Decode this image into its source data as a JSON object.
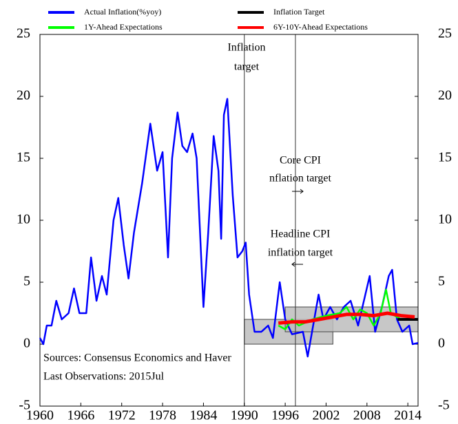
{
  "chart_data": {
    "type": "line",
    "xlim": [
      1960,
      2015.5
    ],
    "xticks": [
      1960,
      1966,
      1972,
      1978,
      1984,
      1990,
      1996,
      2002,
      2008,
      2014
    ],
    "ylim": [
      -5,
      25
    ],
    "yticks": [
      -5,
      0,
      5,
      10,
      15,
      20,
      25
    ],
    "y2lim": [
      -5,
      25
    ],
    "y2ticks": [
      -5,
      0,
      5,
      10,
      15,
      20,
      25
    ],
    "bands": [
      {
        "x": [
          1990,
          2003
        ],
        "y": [
          0,
          2
        ]
      },
      {
        "x": [
          1996,
          2015.5
        ],
        "y": [
          1,
          3
        ]
      }
    ],
    "vlines": [
      1990,
      1997.5
    ],
    "annotations": [
      "Inflation",
      "target",
      "Core CPI",
      "nflation target",
      "Headline CPI",
      "inflation target",
      "Sources: Consensus Economics and Haver",
      "Last Observations: 2015Jul"
    ],
    "series": [
      {
        "name": "Actual Inflation(%yoy)",
        "color": "#0000ff",
        "x": [
          1960,
          1960.5,
          1961,
          1961.7,
          1962.4,
          1963.2,
          1964.2,
          1965,
          1965.8,
          1966.8,
          1967.5,
          1968.3,
          1969.1,
          1969.8,
          1970.8,
          1971.5,
          1972.3,
          1973,
          1973.8,
          1975,
          1976.2,
          1977.2,
          1978,
          1978.8,
          1979.4,
          1980.2,
          1980.9,
          1981.6,
          1982.4,
          1983,
          1984,
          1984.7,
          1985.5,
          1986.2,
          1986.6,
          1987,
          1987.5,
          1988.3,
          1989,
          1989.7,
          1990.2,
          1990.7,
          1991.5,
          1992.5,
          1993.5,
          1994.2,
          1995.2,
          1996,
          1997,
          1998.6,
          1999.3,
          2000.1,
          2000.9,
          2001.6,
          2002.6,
          2003.6,
          2004.6,
          2005.6,
          2006.7,
          2008.4,
          2009.2,
          2010.2,
          2011.2,
          2011.7,
          2012.4,
          2013.2,
          2014.2,
          2014.7,
          2015.5
        ],
        "values": [
          0.5,
          0,
          1.5,
          1.5,
          3.5,
          2,
          2.5,
          4.5,
          2.5,
          2.5,
          7,
          3.5,
          5.5,
          4,
          10,
          11.8,
          8,
          5.3,
          9,
          13,
          17.8,
          14,
          15.5,
          7,
          15,
          18.7,
          16,
          15.5,
          17,
          15,
          3,
          9,
          16.8,
          14,
          8.5,
          18.5,
          19.8,
          12,
          7,
          7.5,
          8.2,
          4,
          1,
          1,
          1.5,
          0.5,
          5,
          2,
          0.8,
          1,
          -1,
          1.5,
          4,
          2,
          3,
          2,
          3,
          3.5,
          1.5,
          5.5,
          1,
          3,
          5.5,
          6,
          2,
          1,
          1.5,
          0,
          0.1
        ]
      },
      {
        "name": "1Y-Ahead Expectations",
        "color": "#00ff00",
        "x": [
          1995,
          1996,
          1997,
          1998,
          2000,
          2002,
          2004,
          2005,
          2006,
          2007,
          2008,
          2009,
          2010,
          2010.8,
          2011.5,
          2013,
          2015.5
        ],
        "values": [
          1.5,
          1.2,
          2,
          1.5,
          2,
          2.3,
          2.5,
          3,
          2,
          2.8,
          2.5,
          1.5,
          2.5,
          4.4,
          2.5,
          2,
          2
        ]
      },
      {
        "name": "Inflation Target",
        "color": "#000000",
        "x": [
          2012.5,
          2015.5
        ],
        "values": [
          2,
          2
        ]
      },
      {
        "name": "6Y-10Y-Ahead Expectations",
        "color": "#ff0000",
        "x": [
          1995,
          1997,
          1999,
          2001,
          2003,
          2005,
          2007,
          2009,
          2011,
          2013,
          2015
        ],
        "values": [
          1.7,
          1.8,
          1.8,
          2,
          2.2,
          2.4,
          2.4,
          2.3,
          2.5,
          2.3,
          2.2
        ]
      }
    ]
  }
}
